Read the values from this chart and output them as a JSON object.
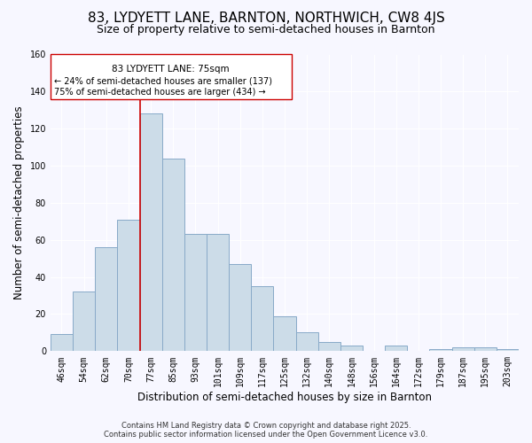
{
  "title": "83, LYDYETT LANE, BARNTON, NORTHWICH, CW8 4JS",
  "subtitle": "Size of property relative to semi-detached houses in Barnton",
  "xlabel": "Distribution of semi-detached houses by size in Barnton",
  "ylabel": "Number of semi-detached properties",
  "bar_labels": [
    "46sqm",
    "54sqm",
    "62sqm",
    "70sqm",
    "77sqm",
    "85sqm",
    "93sqm",
    "101sqm",
    "109sqm",
    "117sqm",
    "125sqm",
    "132sqm",
    "140sqm",
    "148sqm",
    "156sqm",
    "164sqm",
    "172sqm",
    "179sqm",
    "187sqm",
    "195sqm",
    "203sqm"
  ],
  "bar_values": [
    9,
    32,
    56,
    71,
    128,
    104,
    63,
    63,
    47,
    35,
    19,
    10,
    5,
    3,
    0,
    3,
    0,
    1,
    2,
    2,
    1
  ],
  "bar_color": "#ccdce8",
  "bar_edge_color": "#88aac8",
  "annotation_title": "83 LYDYETT LANE: 75sqm",
  "annotation_line1": "← 24% of semi-detached houses are smaller (137)",
  "annotation_line2": "75% of semi-detached houses are larger (434) →",
  "vline_color": "#cc0000",
  "ylim": [
    0,
    160
  ],
  "yticks": [
    0,
    20,
    40,
    60,
    80,
    100,
    120,
    140,
    160
  ],
  "footer1": "Contains HM Land Registry data © Crown copyright and database right 2025.",
  "footer2": "Contains public sector information licensed under the Open Government Licence v3.0.",
  "background_color": "#f7f7ff",
  "title_fontsize": 11,
  "subtitle_fontsize": 9,
  "axis_label_fontsize": 8.5,
  "tick_fontsize": 7,
  "annotation_fontsize": 7.5,
  "footer_fontsize": 6
}
